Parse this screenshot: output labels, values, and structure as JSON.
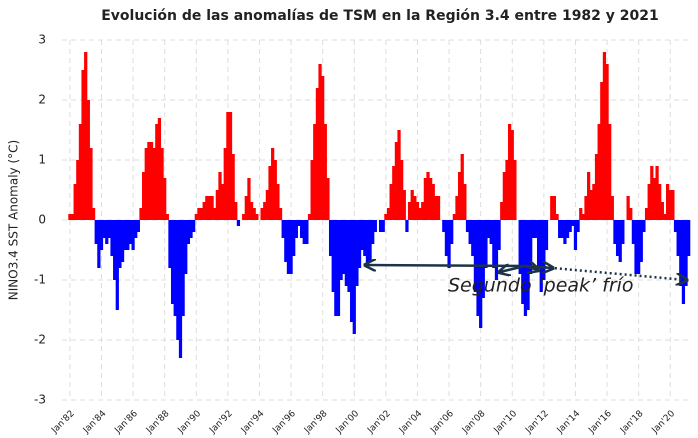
{
  "chart_data": {
    "type": "area",
    "title": "Evolución de las anomalías de TSM en la Región 3.4 entre 1982 y 2021",
    "y_label": "NINO3.4 SST Anomaly (°C)",
    "annotation": "Segundo ‘peak’ frío",
    "positive_color": "#ff0000",
    "negative_color": "#0000ff",
    "grid": true,
    "xlim": [
      "1981-07",
      "2021-04"
    ],
    "ylim": [
      -3,
      3
    ],
    "yticks": [
      -3,
      -2,
      -1,
      0,
      1,
      2,
      3
    ],
    "xticks": [
      {
        "value": "1982-01",
        "label": "Jan'82"
      },
      {
        "value": "1984-01",
        "label": "Jan'84"
      },
      {
        "value": "1986-01",
        "label": "Jan'86"
      },
      {
        "value": "1988-01",
        "label": "Jan'88"
      },
      {
        "value": "1990-01",
        "label": "Jan'90"
      },
      {
        "value": "1992-01",
        "label": "Jan'92"
      },
      {
        "value": "1994-01",
        "label": "Jan'94"
      },
      {
        "value": "1996-01",
        "label": "Jan'96"
      },
      {
        "value": "1998-01",
        "label": "Jan'98"
      },
      {
        "value": "2000-01",
        "label": "Jan'00"
      },
      {
        "value": "2002-01",
        "label": "Jan'02"
      },
      {
        "value": "2004-01",
        "label": "Jan'04"
      },
      {
        "value": "2006-01",
        "label": "Jan'06"
      },
      {
        "value": "2008-01",
        "label": "Jan'08"
      },
      {
        "value": "2010-01",
        "label": "Jan'10"
      },
      {
        "value": "2012-01",
        "label": "Jan'12"
      },
      {
        "value": "2014-01",
        "label": "Jan'14"
      },
      {
        "value": "2016-01",
        "label": "Jan'16"
      },
      {
        "value": "2018-01",
        "label": "Jan'18"
      },
      {
        "value": "2020-01",
        "label": "Jan'20"
      }
    ],
    "x": [
      "1982-01",
      "1982-03",
      "1982-05",
      "1982-07",
      "1982-09",
      "1982-11",
      "1983-01",
      "1983-03",
      "1983-05",
      "1983-07",
      "1983-09",
      "1983-11",
      "1984-01",
      "1984-03",
      "1984-05",
      "1984-07",
      "1984-09",
      "1984-11",
      "1985-01",
      "1985-03",
      "1985-05",
      "1985-07",
      "1985-09",
      "1985-11",
      "1986-01",
      "1986-03",
      "1986-05",
      "1986-07",
      "1986-09",
      "1986-11",
      "1987-01",
      "1987-03",
      "1987-05",
      "1987-07",
      "1987-09",
      "1987-11",
      "1988-01",
      "1988-03",
      "1988-05",
      "1988-07",
      "1988-09",
      "1988-11",
      "1989-01",
      "1989-03",
      "1989-05",
      "1989-07",
      "1989-09",
      "1989-11",
      "1990-01",
      "1990-03",
      "1990-05",
      "1990-07",
      "1990-09",
      "1990-11",
      "1991-01",
      "1991-03",
      "1991-05",
      "1991-07",
      "1991-09",
      "1991-11",
      "1992-01",
      "1992-03",
      "1992-05",
      "1992-07",
      "1992-09",
      "1992-11",
      "1993-01",
      "1993-03",
      "1993-05",
      "1993-07",
      "1993-09",
      "1993-11",
      "1994-01",
      "1994-03",
      "1994-05",
      "1994-07",
      "1994-09",
      "1994-11",
      "1995-01",
      "1995-03",
      "1995-05",
      "1995-07",
      "1995-09",
      "1995-11",
      "1996-01",
      "1996-03",
      "1996-05",
      "1996-07",
      "1996-09",
      "1996-11",
      "1997-01",
      "1997-03",
      "1997-05",
      "1997-07",
      "1997-09",
      "1997-11",
      "1998-01",
      "1998-03",
      "1998-05",
      "1998-07",
      "1998-09",
      "1998-11",
      "1999-01",
      "1999-03",
      "1999-05",
      "1999-07",
      "1999-09",
      "1999-11",
      "2000-01",
      "2000-03",
      "2000-05",
      "2000-07",
      "2000-09",
      "2000-11",
      "2001-01",
      "2001-03",
      "2001-05",
      "2001-07",
      "2001-09",
      "2001-11",
      "2002-01",
      "2002-03",
      "2002-05",
      "2002-07",
      "2002-09",
      "2002-11",
      "2003-01",
      "2003-03",
      "2003-05",
      "2003-07",
      "2003-09",
      "2003-11",
      "2004-01",
      "2004-03",
      "2004-05",
      "2004-07",
      "2004-09",
      "2004-11",
      "2005-01",
      "2005-03",
      "2005-05",
      "2005-07",
      "2005-09",
      "2005-11",
      "2006-01",
      "2006-03",
      "2006-05",
      "2006-07",
      "2006-09",
      "2006-11",
      "2007-01",
      "2007-03",
      "2007-05",
      "2007-07",
      "2007-09",
      "2007-11",
      "2008-01",
      "2008-03",
      "2008-05",
      "2008-07",
      "2008-09",
      "2008-11",
      "2009-01",
      "2009-03",
      "2009-05",
      "2009-07",
      "2009-09",
      "2009-11",
      "2010-01",
      "2010-03",
      "2010-05",
      "2010-07",
      "2010-09",
      "2010-11",
      "2011-01",
      "2011-03",
      "2011-05",
      "2011-07",
      "2011-09",
      "2011-11",
      "2012-01",
      "2012-03",
      "2012-05",
      "2012-07",
      "2012-09",
      "2012-11",
      "2013-01",
      "2013-03",
      "2013-05",
      "2013-07",
      "2013-09",
      "2013-11",
      "2014-01",
      "2014-03",
      "2014-05",
      "2014-07",
      "2014-09",
      "2014-11",
      "2015-01",
      "2015-03",
      "2015-05",
      "2015-07",
      "2015-09",
      "2015-11",
      "2016-01",
      "2016-03",
      "2016-05",
      "2016-07",
      "2016-09",
      "2016-11",
      "2017-01",
      "2017-03",
      "2017-05",
      "2017-07",
      "2017-09",
      "2017-11",
      "2018-01",
      "2018-03",
      "2018-05",
      "2018-07",
      "2018-09",
      "2018-11",
      "2019-01",
      "2019-03",
      "2019-05",
      "2019-07",
      "2019-09",
      "2019-11",
      "2020-01",
      "2020-03",
      "2020-05",
      "2020-07",
      "2020-09",
      "2020-11",
      "2021-01",
      "2021-03"
    ],
    "values": [
      0.1,
      0.1,
      0.6,
      1.0,
      1.6,
      2.5,
      2.8,
      2.0,
      1.2,
      0.2,
      -0.4,
      -0.8,
      -0.5,
      -0.3,
      -0.4,
      -0.3,
      -0.6,
      -1.0,
      -1.5,
      -0.8,
      -0.7,
      -0.5,
      -0.5,
      -0.4,
      -0.5,
      -0.3,
      -0.2,
      0.2,
      0.8,
      1.2,
      1.3,
      1.3,
      1.2,
      1.6,
      1.7,
      1.2,
      0.7,
      0.1,
      -0.8,
      -1.4,
      -1.6,
      -2.0,
      -2.3,
      -1.6,
      -0.9,
      -0.4,
      -0.3,
      -0.2,
      0.1,
      0.2,
      0.2,
      0.3,
      0.4,
      0.4,
      0.4,
      0.2,
      0.5,
      0.8,
      0.6,
      1.2,
      1.8,
      1.8,
      1.1,
      0.3,
      -0.1,
      0.0,
      0.1,
      0.4,
      0.7,
      0.3,
      0.2,
      0.1,
      0.0,
      0.2,
      0.3,
      0.5,
      0.9,
      1.2,
      1.0,
      0.6,
      0.2,
      -0.3,
      -0.7,
      -0.9,
      -0.9,
      -0.6,
      -0.3,
      -0.1,
      -0.3,
      -0.4,
      -0.4,
      0.1,
      1.0,
      1.6,
      2.2,
      2.6,
      2.4,
      1.6,
      0.7,
      -0.6,
      -1.2,
      -1.6,
      -1.6,
      -1.0,
      -0.9,
      -1.1,
      -1.2,
      -1.7,
      -1.9,
      -1.1,
      -0.8,
      -0.5,
      -0.6,
      -0.8,
      -0.7,
      -0.4,
      -0.2,
      0.0,
      -0.2,
      -0.2,
      0.1,
      0.2,
      0.6,
      0.9,
      1.3,
      1.5,
      1.0,
      0.5,
      -0.2,
      0.3,
      0.5,
      0.4,
      0.3,
      0.2,
      0.3,
      0.7,
      0.8,
      0.7,
      0.6,
      0.4,
      0.4,
      0.0,
      -0.2,
      -0.6,
      -0.8,
      -0.4,
      0.1,
      0.4,
      0.8,
      1.1,
      0.6,
      -0.2,
      -0.4,
      -0.6,
      -1.2,
      -1.6,
      -1.8,
      -1.3,
      -0.8,
      -0.3,
      -0.4,
      -0.8,
      -1.0,
      -0.5,
      0.3,
      0.8,
      1.0,
      1.6,
      1.5,
      1.0,
      0.0,
      -0.9,
      -1.4,
      -1.6,
      -1.5,
      -0.9,
      -0.3,
      -0.3,
      -0.8,
      -1.2,
      -1.0,
      -0.5,
      0.0,
      0.4,
      0.4,
      0.1,
      -0.3,
      -0.3,
      -0.4,
      -0.3,
      -0.2,
      -0.1,
      -0.5,
      -0.2,
      0.2,
      0.1,
      0.4,
      0.8,
      0.5,
      0.6,
      1.1,
      1.6,
      2.3,
      2.8,
      2.6,
      1.6,
      0.4,
      -0.4,
      -0.6,
      -0.7,
      -0.4,
      0.0,
      0.4,
      0.2,
      -0.4,
      -0.9,
      -0.9,
      -0.7,
      -0.2,
      0.2,
      0.6,
      0.9,
      0.7,
      0.9,
      0.6,
      0.3,
      0.1,
      0.6,
      0.5,
      0.5,
      -0.2,
      -0.6,
      -1.1,
      -1.4,
      -1.1,
      -0.6
    ]
  }
}
